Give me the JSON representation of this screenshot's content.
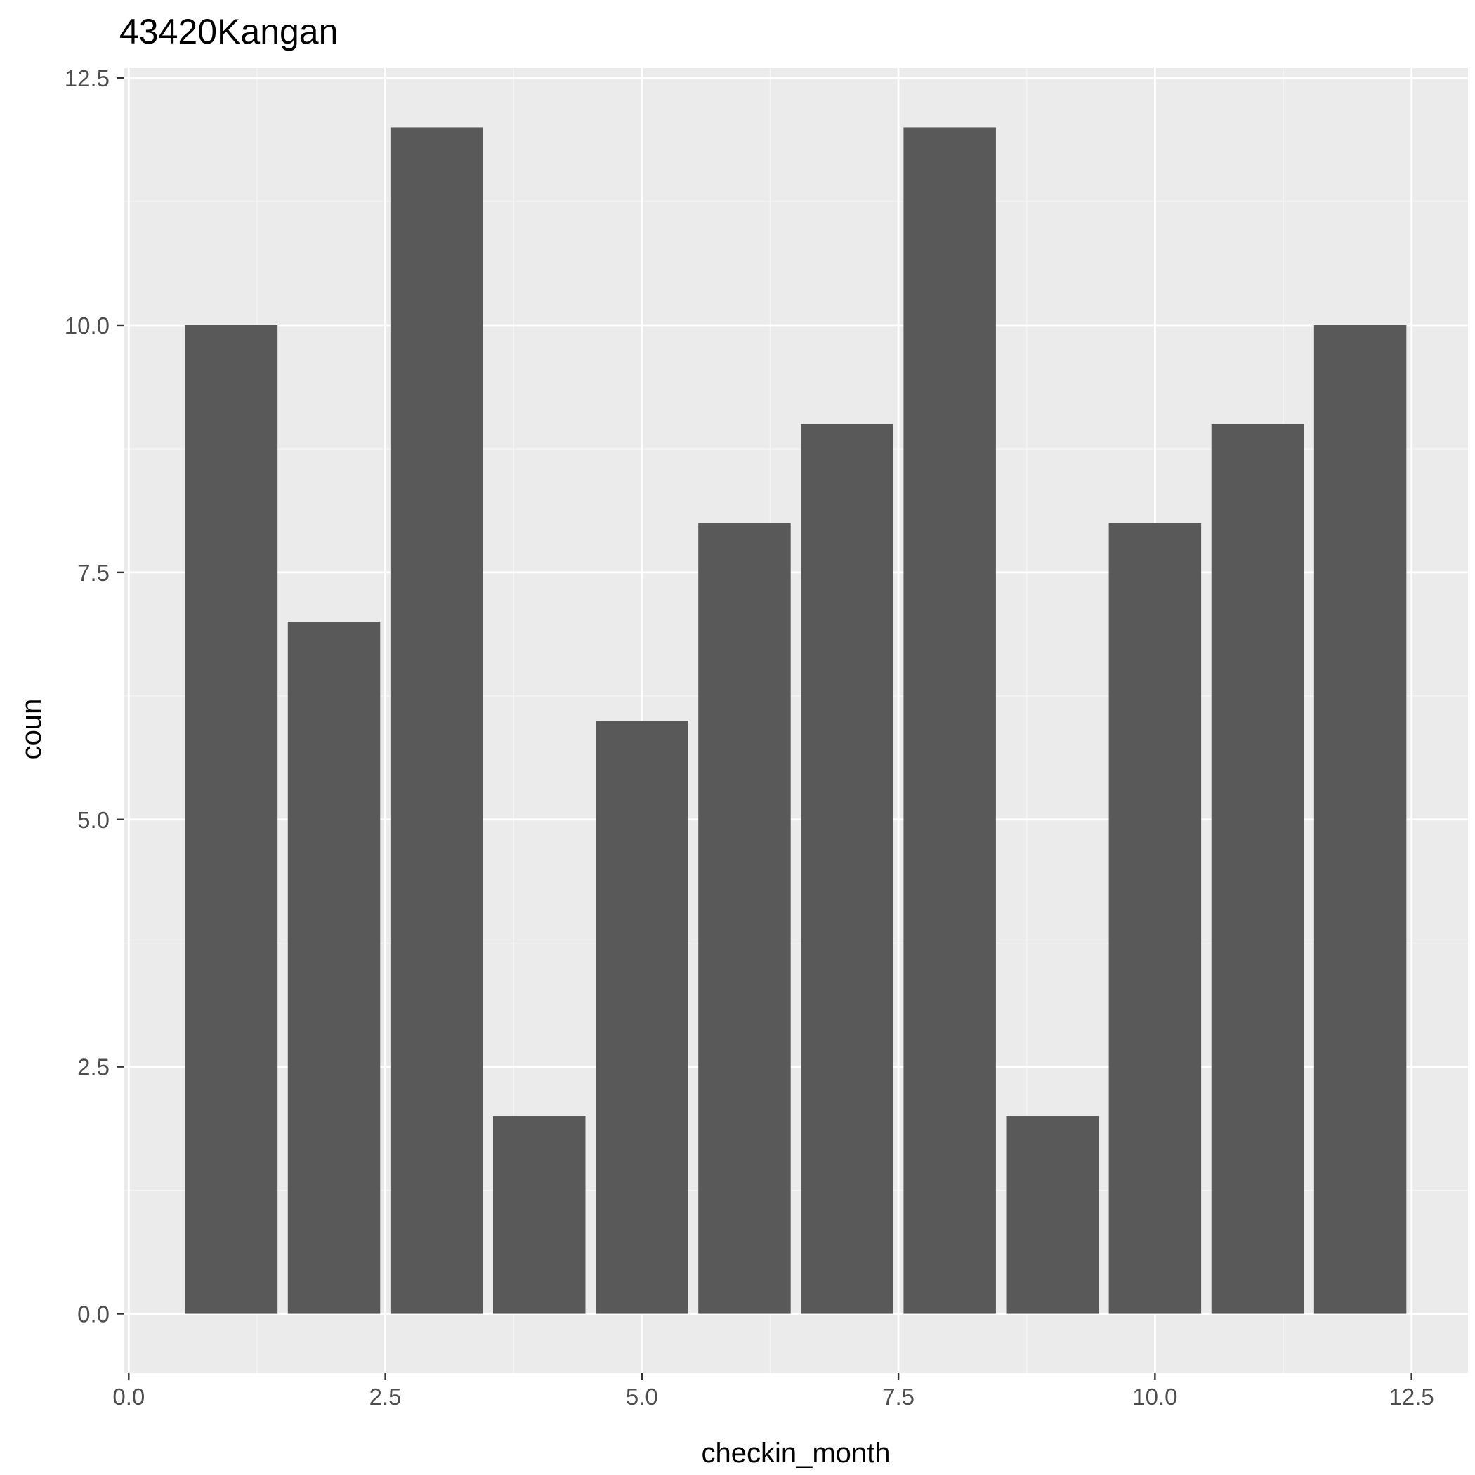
{
  "chart_data": {
    "type": "bar",
    "title": "43420Kangan",
    "xlabel": "checkin_month",
    "ylabel": "coun",
    "x": [
      1,
      2,
      3,
      4,
      5,
      6,
      7,
      8,
      9,
      10,
      11,
      12
    ],
    "values": [
      10,
      7,
      12,
      2,
      6,
      8,
      9,
      12,
      2,
      8,
      9,
      10
    ],
    "bar_width": 0.9,
    "xlim": [
      -0.05,
      13.05
    ],
    "ylim": [
      -0.6,
      12.6
    ],
    "xticks": [
      0.0,
      2.5,
      5.0,
      7.5,
      10.0,
      12.5
    ],
    "xtick_labels": [
      "0.0",
      "2.5",
      "5.0",
      "7.5",
      "10.0",
      "12.5"
    ],
    "yticks": [
      0.0,
      2.5,
      5.0,
      7.5,
      10.0,
      12.5
    ],
    "ytick_labels": [
      "0.0",
      "2.5",
      "5.0",
      "7.5",
      "10.0",
      "12.5"
    ],
    "grid": true,
    "colors": {
      "bar": "#595959",
      "panel": "#ebebeb",
      "grid_major": "#ffffff",
      "grid_minor": "#f5f5f5",
      "tick": "#333333"
    }
  }
}
